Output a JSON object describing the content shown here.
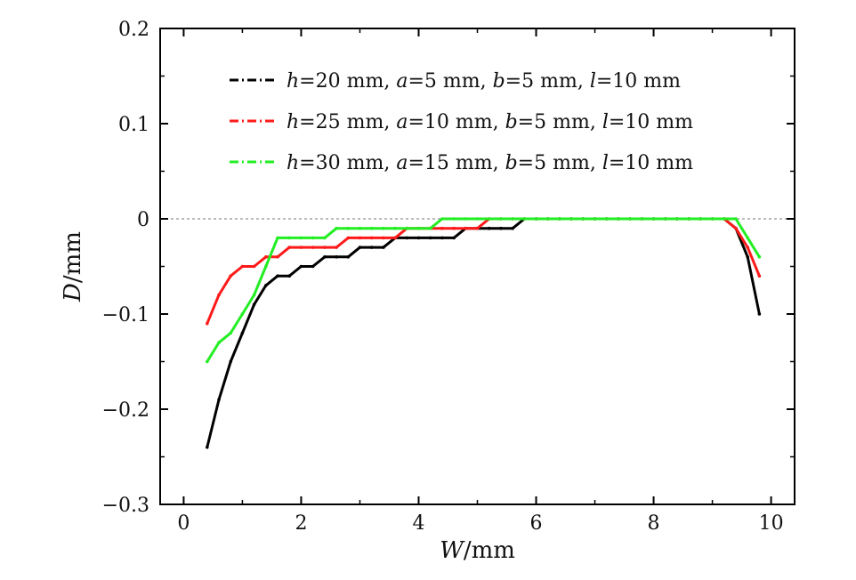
{
  "chart_data": {
    "type": "line",
    "title": "",
    "xlabel": {
      "var": "W",
      "unit": "/mm"
    },
    "ylabel": {
      "var": "D",
      "unit": "/mm"
    },
    "xlim": [
      -0.4,
      10.4
    ],
    "ylim": [
      -0.3,
      0.2
    ],
    "xticks": [
      0,
      2,
      4,
      6,
      8,
      10
    ],
    "yticks": [
      -0.3,
      -0.2,
      -0.1,
      0,
      0.1,
      0.2
    ],
    "xtick_labels": [
      "0",
      "2",
      "4",
      "6",
      "8",
      "10"
    ],
    "ytick_labels": [
      "−0.3",
      "−0.2",
      "−0.1",
      "0",
      "0.1",
      "0.2"
    ],
    "reference_line": {
      "y": 0,
      "style": "dashed"
    },
    "grid": false,
    "legend_position": "top-right",
    "series": [
      {
        "name": "h=20 mm, a=5 mm, b=5 mm, l=10 mm",
        "legend_parts": [
          {
            "text": "h",
            "italic": true
          },
          {
            "text": "=20 mm, ",
            "italic": false
          },
          {
            "text": "a",
            "italic": true
          },
          {
            "text": "=5 mm, ",
            "italic": false
          },
          {
            "text": "b",
            "italic": true
          },
          {
            "text": "=5 mm, ",
            "italic": false
          },
          {
            "text": "l",
            "italic": true
          },
          {
            "text": "=10 mm",
            "italic": false
          }
        ],
        "color": "#000000",
        "x": [
          0.4,
          0.6,
          0.8,
          1.0,
          1.2,
          1.4,
          1.6,
          1.8,
          2.0,
          2.2,
          2.4,
          2.6,
          2.8,
          3.0,
          3.2,
          3.4,
          3.6,
          3.8,
          4.0,
          4.2,
          4.4,
          4.6,
          4.8,
          5.0,
          5.2,
          5.4,
          5.6,
          5.8,
          6.0,
          6.2,
          6.4,
          6.6,
          6.8,
          7.0,
          7.2,
          7.4,
          7.6,
          7.8,
          8.0,
          8.2,
          8.4,
          8.6,
          8.8,
          9.0,
          9.2,
          9.4,
          9.6,
          9.8
        ],
        "y": [
          -0.24,
          -0.19,
          -0.15,
          -0.12,
          -0.09,
          -0.07,
          -0.06,
          -0.06,
          -0.05,
          -0.05,
          -0.04,
          -0.04,
          -0.04,
          -0.03,
          -0.03,
          -0.03,
          -0.02,
          -0.02,
          -0.02,
          -0.02,
          -0.02,
          -0.02,
          -0.01,
          -0.01,
          -0.01,
          -0.01,
          -0.01,
          0,
          0,
          0,
          0,
          0,
          0,
          0,
          0,
          0,
          0,
          0,
          0,
          0,
          0,
          0,
          0,
          0,
          0,
          -0.01,
          -0.04,
          -0.1
        ]
      },
      {
        "name": "h=25 mm, a=10 mm, b=5 mm, l=10 mm",
        "legend_parts": [
          {
            "text": "h",
            "italic": true
          },
          {
            "text": "=25 mm, ",
            "italic": false
          },
          {
            "text": "a",
            "italic": true
          },
          {
            "text": "=10 mm, ",
            "italic": false
          },
          {
            "text": "b",
            "italic": true
          },
          {
            "text": "=5 mm, ",
            "italic": false
          },
          {
            "text": "l",
            "italic": true
          },
          {
            "text": "=10 mm",
            "italic": false
          }
        ],
        "color": "#ff1a1a",
        "x": [
          0.4,
          0.6,
          0.8,
          1.0,
          1.2,
          1.4,
          1.6,
          1.8,
          2.0,
          2.2,
          2.4,
          2.6,
          2.8,
          3.0,
          3.2,
          3.4,
          3.6,
          3.8,
          4.0,
          4.2,
          4.4,
          4.6,
          4.8,
          5.0,
          5.2,
          5.4,
          5.6,
          5.8,
          6.0,
          6.2,
          6.4,
          6.6,
          6.8,
          7.0,
          7.2,
          7.4,
          7.6,
          7.8,
          8.0,
          8.2,
          8.4,
          8.6,
          8.8,
          9.0,
          9.2,
          9.4,
          9.6,
          9.8
        ],
        "y": [
          -0.11,
          -0.08,
          -0.06,
          -0.05,
          -0.05,
          -0.04,
          -0.04,
          -0.03,
          -0.03,
          -0.03,
          -0.03,
          -0.03,
          -0.02,
          -0.02,
          -0.02,
          -0.02,
          -0.02,
          -0.01,
          -0.01,
          -0.01,
          -0.01,
          -0.01,
          -0.01,
          -0.01,
          0,
          0,
          0,
          0,
          0,
          0,
          0,
          0,
          0,
          0,
          0,
          0,
          0,
          0,
          0,
          0,
          0,
          0,
          0,
          0,
          0,
          -0.01,
          -0.03,
          -0.06
        ]
      },
      {
        "name": "h=30 mm, a=15 mm, b=5 mm, l=10 mm",
        "legend_parts": [
          {
            "text": "h",
            "italic": true
          },
          {
            "text": "=30 mm, ",
            "italic": false
          },
          {
            "text": "a",
            "italic": true
          },
          {
            "text": "=15 mm, ",
            "italic": false
          },
          {
            "text": "b",
            "italic": true
          },
          {
            "text": "=5 mm, ",
            "italic": false
          },
          {
            "text": "l",
            "italic": true
          },
          {
            "text": "=10 mm",
            "italic": false
          }
        ],
        "color": "#22ee22",
        "x": [
          0.4,
          0.6,
          0.8,
          1.0,
          1.2,
          1.4,
          1.6,
          1.8,
          2.0,
          2.2,
          2.4,
          2.6,
          2.8,
          3.0,
          3.2,
          3.4,
          3.6,
          3.8,
          4.0,
          4.2,
          4.4,
          4.6,
          4.8,
          5.0,
          5.2,
          5.4,
          5.6,
          5.8,
          6.0,
          6.2,
          6.4,
          6.6,
          6.8,
          7.0,
          7.2,
          7.4,
          7.6,
          7.8,
          8.0,
          8.2,
          8.4,
          8.6,
          8.8,
          9.0,
          9.2,
          9.4,
          9.6,
          9.8
        ],
        "y": [
          -0.15,
          -0.13,
          -0.12,
          -0.1,
          -0.08,
          -0.05,
          -0.02,
          -0.02,
          -0.02,
          -0.02,
          -0.02,
          -0.01,
          -0.01,
          -0.01,
          -0.01,
          -0.01,
          -0.01,
          -0.01,
          -0.01,
          -0.01,
          0,
          0,
          0,
          0,
          0,
          0,
          0,
          0,
          0,
          0,
          0,
          0,
          0,
          0,
          0,
          0,
          0,
          0,
          0,
          0,
          0,
          0,
          0,
          0,
          0,
          0,
          -0.02,
          -0.04
        ]
      }
    ]
  }
}
